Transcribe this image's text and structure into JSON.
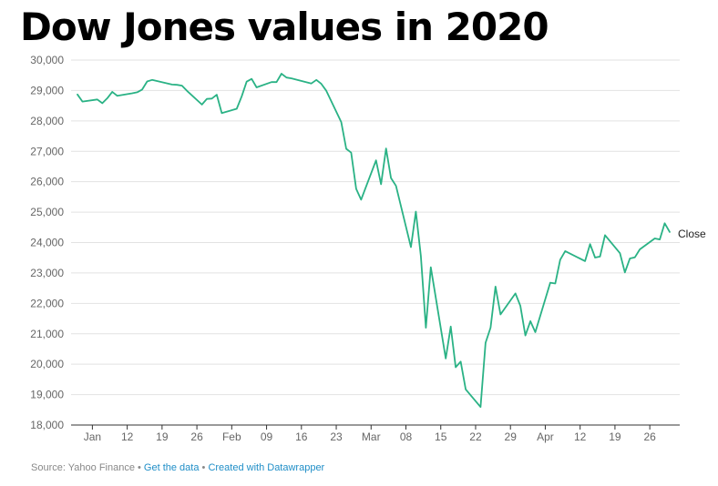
{
  "chart_data": {
    "type": "line",
    "title": "Dow Jones values in 2020",
    "xlabel": "",
    "ylabel": "",
    "ylim": [
      18000,
      30000
    ],
    "y_ticks": [
      18000,
      19000,
      20000,
      21000,
      22000,
      23000,
      24000,
      25000,
      26000,
      27000,
      28000,
      29000,
      30000
    ],
    "y_tick_labels": [
      "18,000",
      "19,000",
      "20,000",
      "21,000",
      "22,000",
      "23,000",
      "24,000",
      "25,000",
      "26,000",
      "27,000",
      "28,000",
      "29,000",
      "30,000"
    ],
    "x_ticks": [
      "2020-01-05",
      "2020-01-12",
      "2020-01-19",
      "2020-01-26",
      "2020-02-02",
      "2020-02-09",
      "2020-02-16",
      "2020-02-23",
      "2020-03-01",
      "2020-03-08",
      "2020-03-15",
      "2020-03-22",
      "2020-03-29",
      "2020-04-05",
      "2020-04-12",
      "2020-04-19",
      "2020-04-26"
    ],
    "x_tick_labels": [
      "Jan",
      "12",
      "19",
      "26",
      "Feb",
      "09",
      "16",
      "23",
      "Mar",
      "08",
      "15",
      "22",
      "29",
      "Apr",
      "12",
      "19",
      "26"
    ],
    "grid": true,
    "series": [
      {
        "name": "Close",
        "color": "#2ab285",
        "points": [
          [
            "2020-01-02",
            28868
          ],
          [
            "2020-01-03",
            28634
          ],
          [
            "2020-01-06",
            28703
          ],
          [
            "2020-01-07",
            28583
          ],
          [
            "2020-01-08",
            28745
          ],
          [
            "2020-01-09",
            28957
          ],
          [
            "2020-01-10",
            28824
          ],
          [
            "2020-01-13",
            28907
          ],
          [
            "2020-01-14",
            28940
          ],
          [
            "2020-01-15",
            29030
          ],
          [
            "2020-01-16",
            29298
          ],
          [
            "2020-01-17",
            29348
          ],
          [
            "2020-01-21",
            29196
          ],
          [
            "2020-01-22",
            29186
          ],
          [
            "2020-01-23",
            29160
          ],
          [
            "2020-01-24",
            28990
          ],
          [
            "2020-01-27",
            28536
          ],
          [
            "2020-01-28",
            28723
          ],
          [
            "2020-01-29",
            28734
          ],
          [
            "2020-01-30",
            28859
          ],
          [
            "2020-01-31",
            28256
          ],
          [
            "2020-02-03",
            28399
          ],
          [
            "2020-02-04",
            28808
          ],
          [
            "2020-02-05",
            29290
          ],
          [
            "2020-02-06",
            29380
          ],
          [
            "2020-02-07",
            29103
          ],
          [
            "2020-02-10",
            29276
          ],
          [
            "2020-02-11",
            29277
          ],
          [
            "2020-02-12",
            29551
          ],
          [
            "2020-02-13",
            29424
          ],
          [
            "2020-02-14",
            29398
          ],
          [
            "2020-02-18",
            29232
          ],
          [
            "2020-02-19",
            29348
          ],
          [
            "2020-02-20",
            29220
          ],
          [
            "2020-02-21",
            28992
          ],
          [
            "2020-02-24",
            27961
          ],
          [
            "2020-02-25",
            27081
          ],
          [
            "2020-02-26",
            26957
          ],
          [
            "2020-02-27",
            25767
          ],
          [
            "2020-02-28",
            25409
          ],
          [
            "2020-03-02",
            26703
          ],
          [
            "2020-03-03",
            25918
          ],
          [
            "2020-03-04",
            27091
          ],
          [
            "2020-03-05",
            26122
          ],
          [
            "2020-03-06",
            25865
          ],
          [
            "2020-03-09",
            23851
          ],
          [
            "2020-03-10",
            25018
          ],
          [
            "2020-03-11",
            23553
          ],
          [
            "2020-03-12",
            21200
          ],
          [
            "2020-03-13",
            23186
          ],
          [
            "2020-03-16",
            20189
          ],
          [
            "2020-03-17",
            21237
          ],
          [
            "2020-03-18",
            19899
          ],
          [
            "2020-03-19",
            20087
          ],
          [
            "2020-03-20",
            19174
          ],
          [
            "2020-03-23",
            18592
          ],
          [
            "2020-03-24",
            20705
          ],
          [
            "2020-03-25",
            21201
          ],
          [
            "2020-03-26",
            22553
          ],
          [
            "2020-03-27",
            21637
          ],
          [
            "2020-03-30",
            22327
          ],
          [
            "2020-03-31",
            21917
          ],
          [
            "2020-04-01",
            20944
          ],
          [
            "2020-04-02",
            21413
          ],
          [
            "2020-04-03",
            21053
          ],
          [
            "2020-04-06",
            22680
          ],
          [
            "2020-04-07",
            22654
          ],
          [
            "2020-04-08",
            23434
          ],
          [
            "2020-04-09",
            23719
          ],
          [
            "2020-04-13",
            23390
          ],
          [
            "2020-04-14",
            23950
          ],
          [
            "2020-04-15",
            23505
          ],
          [
            "2020-04-16",
            23538
          ],
          [
            "2020-04-17",
            24242
          ],
          [
            "2020-04-20",
            23650
          ],
          [
            "2020-04-21",
            23019
          ],
          [
            "2020-04-22",
            23475
          ],
          [
            "2020-04-23",
            23515
          ],
          [
            "2020-04-24",
            23775
          ],
          [
            "2020-04-27",
            24134
          ],
          [
            "2020-04-28",
            24101
          ],
          [
            "2020-04-29",
            24634
          ],
          [
            "2020-04-30",
            24346
          ]
        ]
      }
    ]
  },
  "footer": {
    "source": "Source: Yahoo Finance",
    "separator": " • ",
    "get_data": "Get the data",
    "created_with": "Created with Datawrapper"
  }
}
